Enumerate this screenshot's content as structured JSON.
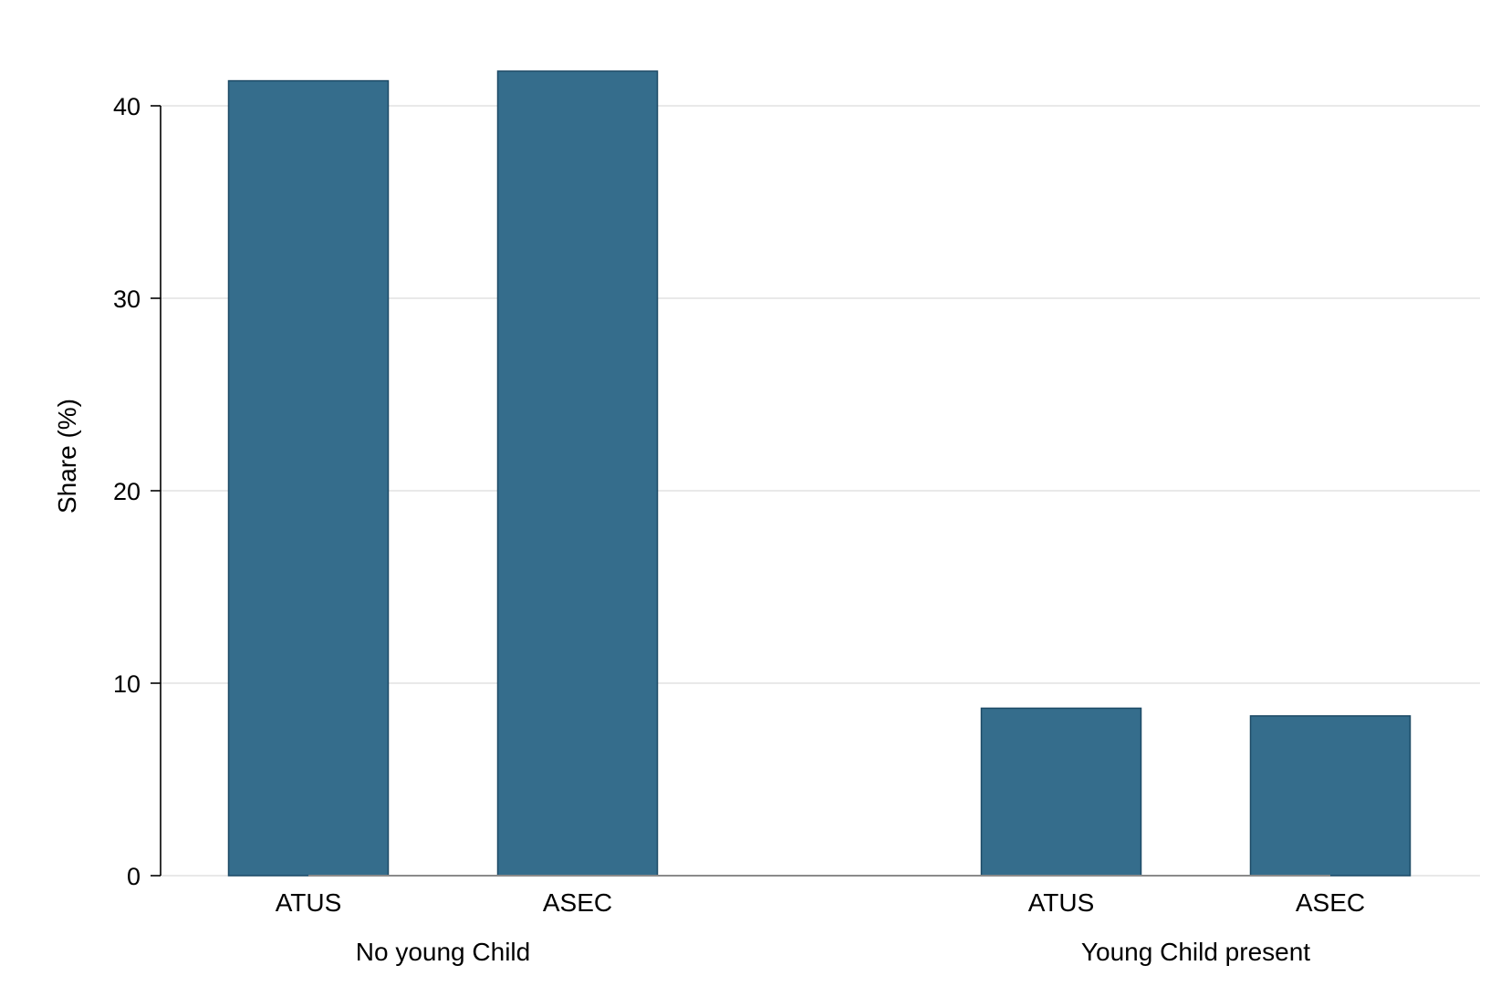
{
  "chart_data": {
    "type": "bar",
    "title": "",
    "xlabel": "",
    "ylabel": "Share (%)",
    "ylim": [
      0,
      42
    ],
    "yticks": [
      0,
      10,
      20,
      30,
      40
    ],
    "grid": true,
    "bar_color": "#356d8c",
    "groups": [
      {
        "name": "No young Child",
        "categories": [
          "ATUS",
          "ASEC"
        ],
        "values": [
          41.3,
          41.8
        ]
      },
      {
        "name": "Young Child present",
        "categories": [
          "ATUS",
          "ASEC"
        ],
        "values": [
          8.7,
          8.3
        ]
      }
    ]
  }
}
